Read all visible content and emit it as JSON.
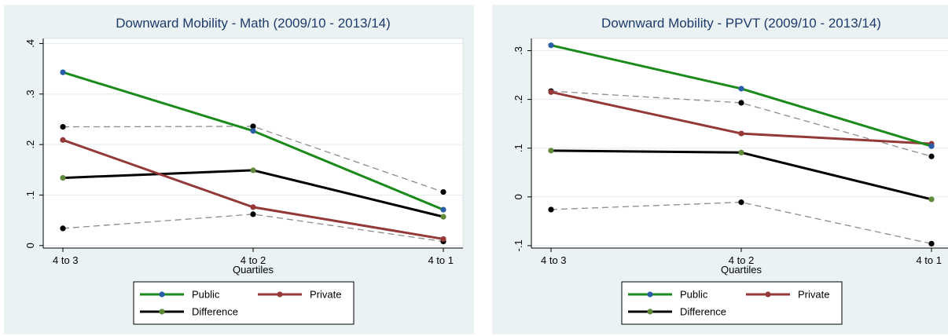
{
  "chart_data": [
    {
      "type": "line",
      "title": "Downward Mobility - Math (2009/10 - 2013/14)",
      "xlabel": "Quartiles",
      "ylabel": "",
      "categories": [
        "4 to 3",
        "4 to 2",
        "4 to 1"
      ],
      "ylim": [
        -0.005,
        0.41
      ],
      "yticks": [
        {
          "value": 0,
          "label": "0"
        },
        {
          "value": 0.1,
          "label": ".1"
        },
        {
          "value": 0.2,
          "label": ".2"
        },
        {
          "value": 0.3,
          "label": ".3"
        },
        {
          "value": 0.4,
          "label": ".4"
        }
      ],
      "grid": true,
      "legend_position": "bottom",
      "series": [
        {
          "name": "Public",
          "values": [
            0.343,
            0.227,
            0.071
          ],
          "color": "#1a8a1a",
          "marker_color": "#2a5da8",
          "style": "solid"
        },
        {
          "name": "Private",
          "values": [
            0.209,
            0.076,
            0.013
          ],
          "color": "#943838",
          "marker_color": "#943838",
          "style": "solid"
        },
        {
          "name": "Difference",
          "values": [
            0.134,
            0.149,
            0.057
          ],
          "color": "#000000",
          "marker_color": "#5f8a3a",
          "style": "solid"
        },
        {
          "values": [
            0.235,
            0.236,
            0.106
          ],
          "color": "#8c8c8c",
          "marker_color": "#000000",
          "style": "dashed"
        },
        {
          "values": [
            0.034,
            0.062,
            0.008
          ],
          "color": "#8c8c8c",
          "marker_color": "#000000",
          "style": "dashed"
        }
      ]
    },
    {
      "type": "line",
      "title": "Downward Mobility - PPVT (2009/10 - 2013/14)",
      "xlabel": "Quartiles",
      "ylabel": "",
      "categories": [
        "4 to 3",
        "4 to 2",
        "4 to 1"
      ],
      "ylim": [
        -0.105,
        0.325
      ],
      "yticks": [
        {
          "value": -0.1,
          "label": "-.1"
        },
        {
          "value": 0,
          "label": "0"
        },
        {
          "value": 0.1,
          "label": ".1"
        },
        {
          "value": 0.2,
          "label": ".2"
        },
        {
          "value": 0.3,
          "label": ".3"
        }
      ],
      "grid": true,
      "legend_position": "bottom",
      "series": [
        {
          "name": "Public",
          "values": [
            0.311,
            0.222,
            0.104
          ],
          "color": "#1a8a1a",
          "marker_color": "#2a5da8",
          "style": "solid"
        },
        {
          "name": "Private",
          "values": [
            0.215,
            0.13,
            0.109
          ],
          "color": "#943838",
          "marker_color": "#943838",
          "style": "solid"
        },
        {
          "name": "Difference",
          "values": [
            0.095,
            0.091,
            -0.005
          ],
          "color": "#000000",
          "marker_color": "#5f8a3a",
          "style": "solid"
        },
        {
          "values": [
            0.217,
            0.193,
            0.083
          ],
          "color": "#8c8c8c",
          "marker_color": "#000000",
          "style": "dashed"
        },
        {
          "values": [
            -0.026,
            -0.011,
            -0.096
          ],
          "color": "#8c8c8c",
          "marker_color": "#000000",
          "style": "dashed"
        }
      ]
    }
  ],
  "colors": {
    "outer_background": "#eaf2f3",
    "plot_background": "#ffffff",
    "title_color": "#1e3b6e",
    "grid_color": "#e5ebee",
    "axis_color": "#000000"
  }
}
